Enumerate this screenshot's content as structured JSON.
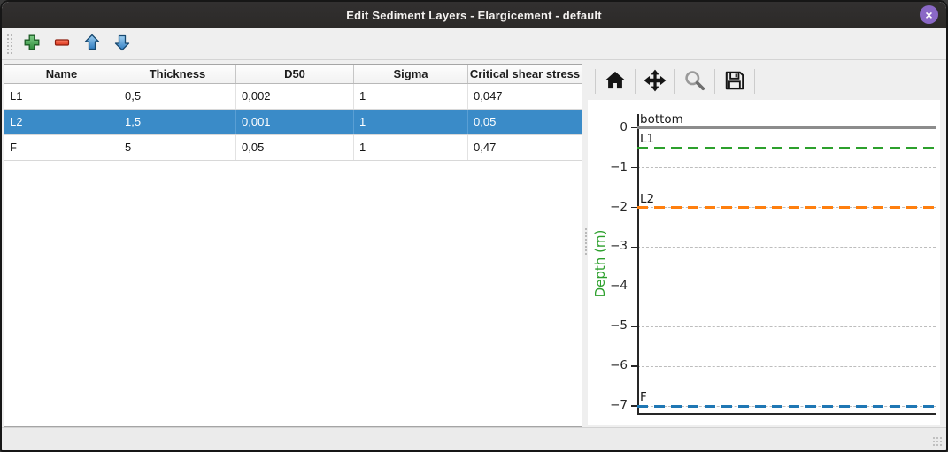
{
  "window": {
    "title": "Edit Sediment Layers - Elargicement - default",
    "close_glyph": "×"
  },
  "main_toolbar": {
    "buttons": [
      {
        "name": "add-layer",
        "icon": "plus-icon"
      },
      {
        "name": "remove-layer",
        "icon": "minus-icon"
      },
      {
        "name": "move-layer-up",
        "icon": "arrow-up-icon"
      },
      {
        "name": "move-layer-down",
        "icon": "arrow-down-icon"
      }
    ]
  },
  "table": {
    "columns": [
      "Name",
      "Thickness",
      "D50",
      "Sigma",
      "Critical shear stress"
    ],
    "rows": [
      {
        "cells": [
          "L1",
          "0,5",
          "0,002",
          "1",
          "0,047"
        ],
        "selected": false
      },
      {
        "cells": [
          "L2",
          "1,5",
          "0,001",
          "1",
          "0,05"
        ],
        "selected": true
      },
      {
        "cells": [
          "F",
          "5",
          "0,05",
          "1",
          "0,47"
        ],
        "selected": false
      }
    ],
    "selection_color": "#3a8bc8"
  },
  "plot_toolbar": {
    "buttons": [
      {
        "name": "home",
        "icon": "home-icon"
      },
      {
        "name": "pan",
        "icon": "pan-icon"
      },
      {
        "name": "zoom",
        "icon": "magnifier-icon"
      },
      {
        "name": "save",
        "icon": "save-icon"
      }
    ]
  },
  "chart_data": {
    "type": "line",
    "ylabel": "Depth (m)",
    "ylabel_color": "#2ca02c",
    "ylim": [
      -7.2,
      0.35
    ],
    "yticks": [
      0,
      -1,
      -2,
      -3,
      -4,
      -5,
      -6,
      -7
    ],
    "grid": true,
    "series": [
      {
        "label": "bottom",
        "depth": 0,
        "color": "#8c8c8c",
        "style": "solid"
      },
      {
        "label": "L1",
        "depth": -0.5,
        "color": "#2ca02c",
        "style": "dashed"
      },
      {
        "label": "L2",
        "depth": -2,
        "color": "#ff7f0e",
        "style": "dashed"
      },
      {
        "label": "F",
        "depth": -7,
        "color": "#1f77b4",
        "style": "dashed"
      }
    ]
  }
}
